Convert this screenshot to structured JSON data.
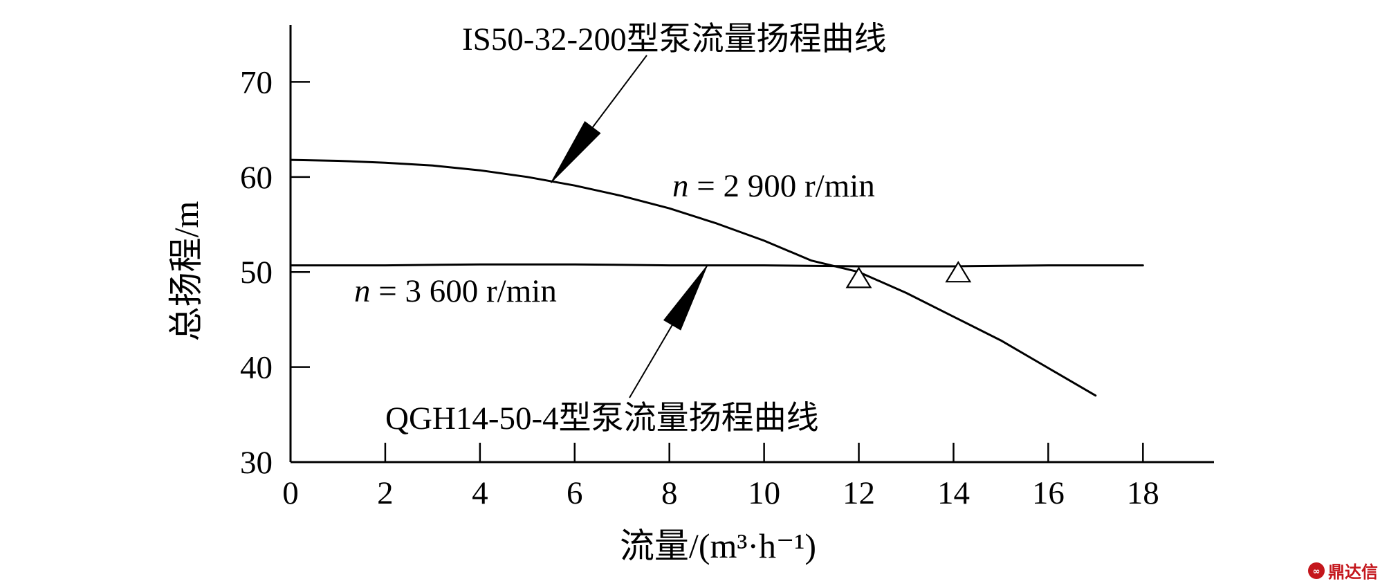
{
  "chart_data": {
    "type": "line",
    "title": "",
    "xlabel": "流量/(m³·h⁻¹)",
    "ylabel": "总扬程/m",
    "xlim": [
      0,
      19.5
    ],
    "ylim": [
      30,
      76
    ],
    "x_ticks": [
      0,
      2,
      4,
      6,
      8,
      10,
      12,
      14,
      16,
      18
    ],
    "y_ticks": [
      30,
      40,
      50,
      60,
      70
    ],
    "grid": false,
    "series": [
      {
        "name": "IS50-32-200型泵流量扬程曲线",
        "speed_label": "n = 2 900 r/min",
        "x": [
          0,
          1,
          2,
          3,
          4,
          5,
          6,
          7,
          8,
          9,
          10,
          11,
          12,
          13,
          14,
          15,
          16,
          17
        ],
        "y": [
          61.8,
          61.7,
          61.5,
          61.2,
          60.7,
          60.0,
          59.1,
          58.0,
          56.7,
          55.1,
          53.3,
          51.2,
          50.0,
          47.8,
          45.3,
          42.8,
          39.9,
          37.0
        ]
      },
      {
        "name": "QGH14-50-4型泵流量扬程曲线",
        "speed_label": "n = 3 600 r/min",
        "x": [
          0,
          2,
          4,
          6,
          8,
          10,
          12,
          14,
          16,
          18
        ],
        "y": [
          50.7,
          50.7,
          50.8,
          50.8,
          50.7,
          50.7,
          50.6,
          50.6,
          50.7,
          50.7
        ]
      }
    ],
    "markers": [
      {
        "shape": "triangle",
        "x": 12.0,
        "y": 49.2
      },
      {
        "shape": "triangle",
        "x": 14.1,
        "y": 49.8
      }
    ],
    "annotations": [
      {
        "text": "IS50-32-200型泵流量扬程曲线",
        "points_to": {
          "x": 5.5,
          "y": 59.4
        }
      },
      {
        "text": "n = 2 900 r/min"
      },
      {
        "text": "n = 3 600 r/min"
      },
      {
        "text": "QGH14-50-4型泵流量扬程曲线",
        "points_to": {
          "x": 8.8,
          "y": 50.7
        }
      }
    ]
  },
  "watermark": {
    "text": "鼎达信"
  }
}
